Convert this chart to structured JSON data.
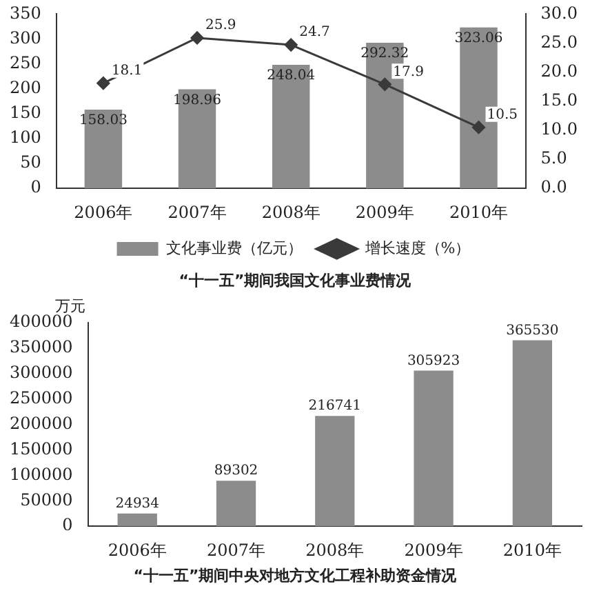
{
  "chart_data": [
    {
      "type": "bar",
      "title": "“十一五”期间我国文化事业费情况",
      "categories": [
        "2006年",
        "2007年",
        "2008年",
        "2009年",
        "2010年"
      ],
      "series": [
        {
          "name": "文化事业费（亿元）",
          "type": "bar",
          "color": "#8c8c8c",
          "values": [
            158.03,
            198.96,
            248.04,
            292.32,
            323.06
          ]
        },
        {
          "name": "增长速度（%）",
          "type": "line",
          "axis": "y2",
          "color": "#3a3a3a",
          "marker": "diamond",
          "values": [
            18.1,
            25.9,
            24.7,
            17.9,
            10.5
          ]
        }
      ],
      "ylim": [
        0,
        350
      ],
      "yticks": [
        0,
        50,
        100,
        150,
        200,
        250,
        300,
        350
      ],
      "y2lim": [
        0,
        30
      ],
      "y2ticks": [
        {
          "value": 0,
          "label": "0.0"
        },
        {
          "value": 5,
          "label": "5.0"
        },
        {
          "value": 10,
          "label": "10.0"
        },
        {
          "value": 15,
          "label": "15.0"
        },
        {
          "value": 20,
          "label": "20.0"
        },
        {
          "value": 25,
          "label": "25.0"
        },
        {
          "value": 30,
          "label": "30.0"
        }
      ],
      "data_labels": true,
      "legend": "bottom",
      "grid": false
    },
    {
      "type": "bar",
      "title": "“十一五”期间中央对地方文化工程补助资金情况",
      "ylabel": "万元",
      "categories": [
        "2006年",
        "2007年",
        "2008年",
        "2009年",
        "2010年"
      ],
      "series": [
        {
          "color": "#8c8c8c",
          "values": [
            24934,
            89302,
            216741,
            305923,
            365530
          ]
        }
      ],
      "ylim": [
        0,
        400000
      ],
      "yticks": [
        0,
        50000,
        100000,
        150000,
        200000,
        250000,
        300000,
        350000,
        400000
      ],
      "data_labels": true,
      "legend": false,
      "grid": false
    }
  ]
}
